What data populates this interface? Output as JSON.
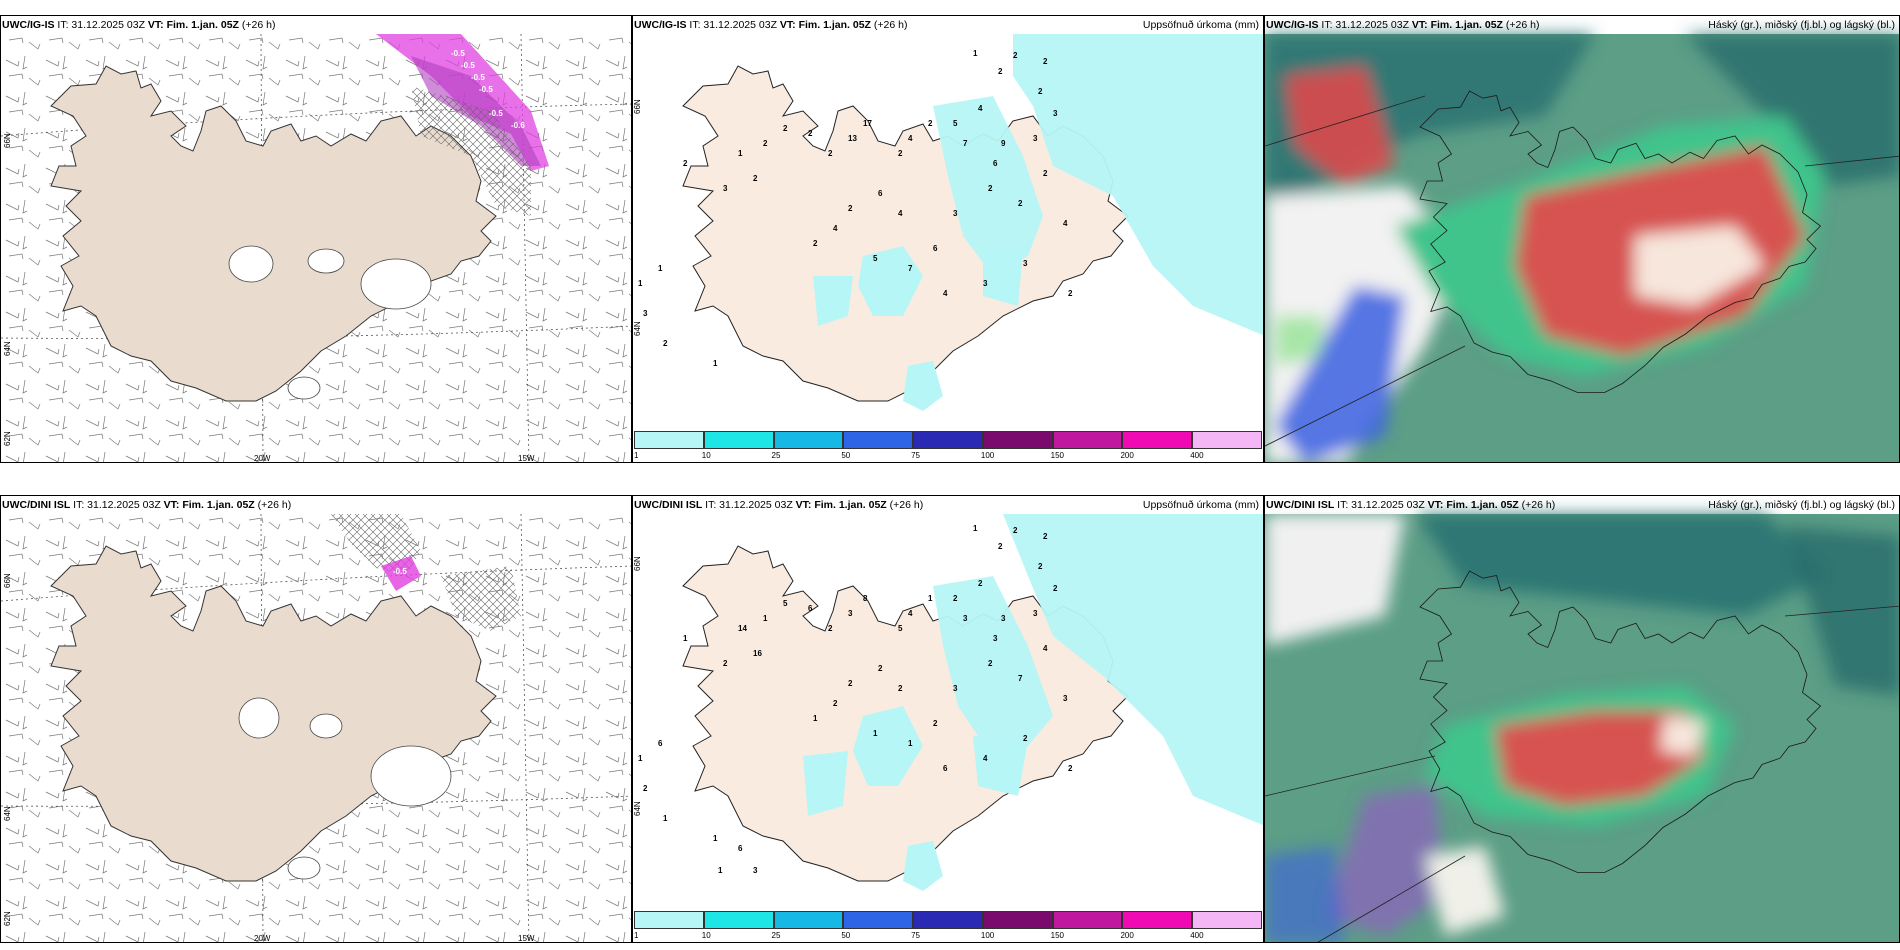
{
  "colors": {
    "land": "#efe0d2",
    "precip": "#b6f6f6",
    "pink": "#e040e0",
    "high_cloud": "#2a7272",
    "mid_cloud": "#3fb88a",
    "low_cloud": "#5fa88c",
    "red_cloud": "#ee4a4a"
  },
  "top": {
    "wind": {
      "model": "UWC/IG-IS",
      "it_label": "IT: 31.12.2025 03Z",
      "vt_label": "VT: Fim. 1.jan. 05Z",
      "lead": "(+26 h)",
      "lon_labels": [
        "20W",
        "15W"
      ],
      "lat_labels": [
        "66N",
        "64N",
        "62N"
      ],
      "contour_values": [
        "-0.5",
        "-0.5",
        "-0.5",
        "-0.5",
        "-0.5",
        "-0.6"
      ]
    },
    "precip": {
      "model": "UWC/IG-IS",
      "it_label": "IT: 31.12.2025 03Z",
      "vt_label": "VT: Fim. 1.jan. 05Z",
      "lead": "(+26 h)",
      "right_title": "Uppsöfnuð úrkoma (mm)",
      "lat_labels": [
        "66N",
        "64N"
      ],
      "values": [
        "1",
        "2",
        "2",
        "2",
        "2",
        "3",
        "3",
        "4",
        "5",
        "7",
        "9",
        "6",
        "2",
        "4",
        "2",
        "17",
        "13",
        "2",
        "2",
        "2",
        "2",
        "1",
        "2",
        "3",
        "2",
        "6",
        "4",
        "2",
        "4",
        "2",
        "5",
        "7",
        "6",
        "3",
        "2",
        "2",
        "2",
        "4",
        "2",
        "3",
        "3",
        "4",
        "1",
        "1",
        "1",
        "3",
        "2",
        "3",
        "3",
        "2",
        "1"
      ]
    },
    "cloud": {
      "model": "UWC/IG-IS",
      "it_label": "IT: 31.12.2025 03Z",
      "vt_label": "VT: Fim. 1.jan. 05Z",
      "lead": "(+26 h)",
      "right_title": "Háský (gr.), miðský (fj.bl.) og lágský (bl.)"
    }
  },
  "bottom": {
    "wind": {
      "model": "UWC/DINI ISL",
      "it_label": "IT: 31.12.2025 03Z",
      "vt_label": "VT: Fim. 1.jan. 05Z",
      "lead": "(+26 h)",
      "lon_labels": [
        "20W",
        "15W"
      ],
      "lat_labels": [
        "66N",
        "64N",
        "62N"
      ],
      "contour_values": [
        "-0.5"
      ]
    },
    "precip": {
      "model": "UWC/DINI ISL",
      "it_label": "IT: 31.12.2025 03Z",
      "vt_label": "VT: Fim. 1.jan. 05Z",
      "lead": "(+26 h)",
      "right_title": "Uppsöfnuð úrkoma (mm)",
      "lat_labels": [
        "66N",
        "64N"
      ],
      "values": [
        "1",
        "2",
        "2",
        "2",
        "2",
        "2",
        "3",
        "2",
        "2",
        "3",
        "3",
        "3",
        "1",
        "4",
        "5",
        "8",
        "3",
        "2",
        "6",
        "5",
        "1",
        "14",
        "16",
        "2",
        "1",
        "2",
        "2",
        "2",
        "2",
        "1",
        "1",
        "1",
        "2",
        "3",
        "2",
        "7",
        "4",
        "3",
        "2",
        "2",
        "4",
        "6",
        "6",
        "1",
        "2",
        "2",
        "3",
        "3",
        "4",
        "1",
        "1",
        "6",
        "3",
        "1"
      ]
    },
    "cloud": {
      "model": "UWC/DINI ISL",
      "it_label": "IT: 31.12.2025 03Z",
      "vt_label": "VT: Fim. 1.jan. 05Z",
      "lead": "(+26 h)",
      "right_title": "Háský (gr.), miðský (fj.bl.) og lágský (bl.)"
    }
  },
  "colorbar": {
    "ticks": [
      "1",
      "10",
      "25",
      "50",
      "75",
      "100",
      "150",
      "200",
      "400"
    ],
    "colors": [
      "#b6f6f6",
      "#1ee6e6",
      "#16b9e6",
      "#2e64e6",
      "#2a2ab4",
      "#7a0a6e",
      "#c0189e",
      "#f00ab4",
      "#f4b6f4"
    ]
  }
}
